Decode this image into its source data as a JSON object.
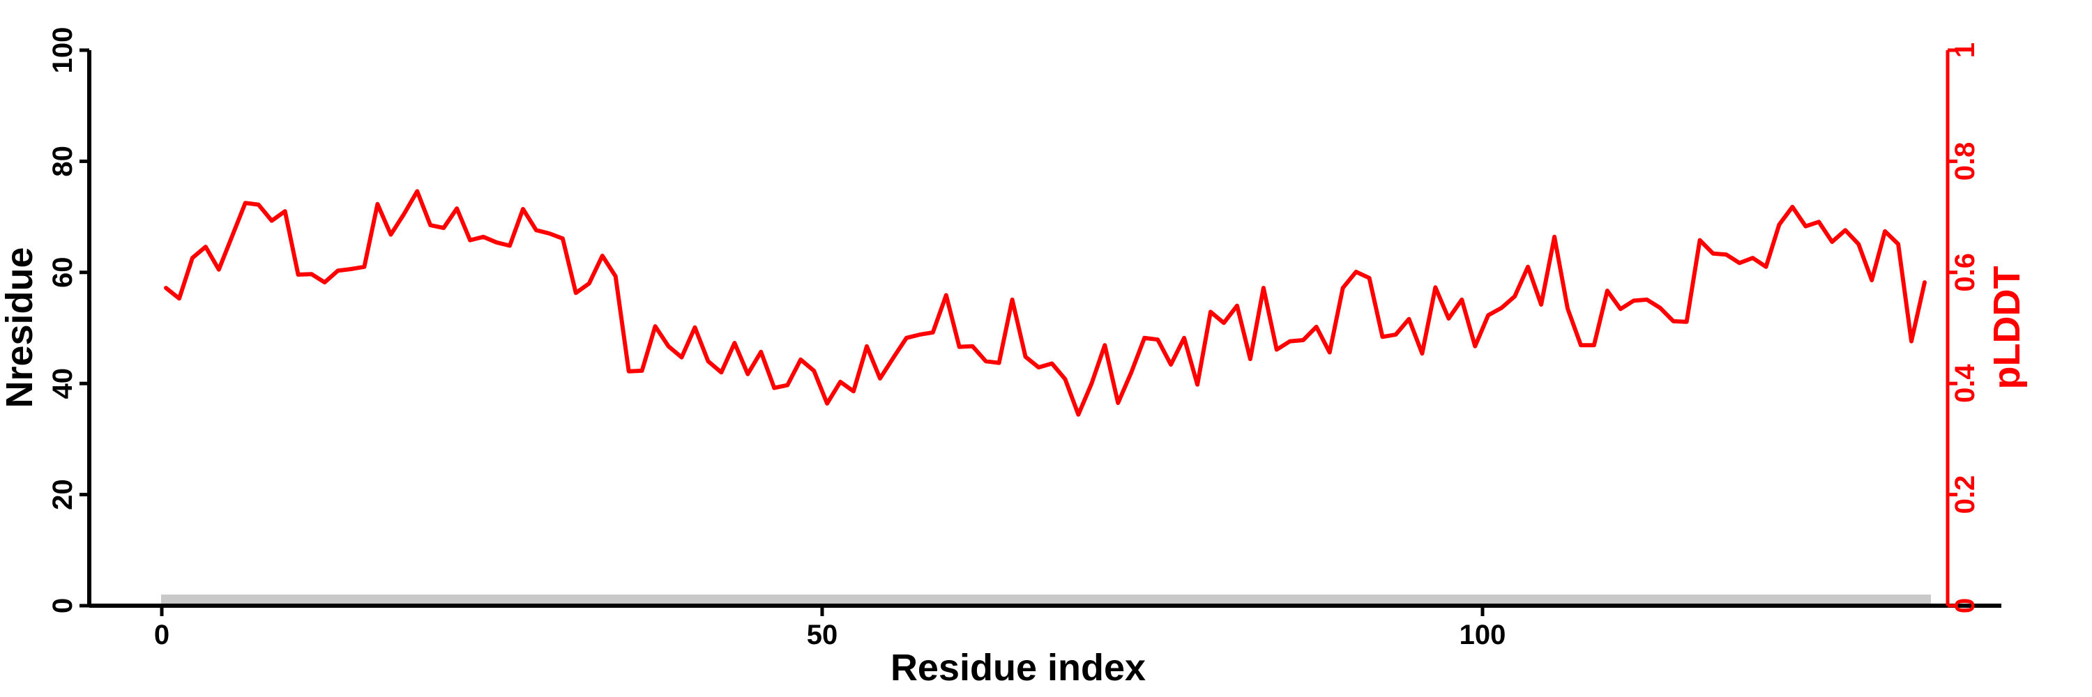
{
  "figure": {
    "background": "#ffffff",
    "axis_color": "#000000",
    "accent_red": "#ff0000",
    "bar_color": "#c9c9c9"
  },
  "chart_data": {
    "type": "line",
    "title": "",
    "xlabel": "Residue index",
    "ylabel_left": "Nresidue",
    "ylabel_right": "pLDDT",
    "x_tick_values": [
      0,
      50,
      100
    ],
    "x_tick_labels": [
      "0",
      "50",
      "100"
    ],
    "left_tick_values": [
      0,
      20,
      40,
      60,
      80,
      100
    ],
    "left_tick_labels": [
      "0",
      "20",
      "40",
      "60",
      "80",
      "100"
    ],
    "right_tick_values": [
      0,
      0.2,
      0.4,
      0.6,
      0.8,
      1
    ],
    "right_tick_labels": [
      "0",
      "0.2",
      "0.4",
      "0.6",
      "0.8",
      "1"
    ],
    "xlim": [
      -5.5,
      135.2
    ],
    "ylim_left": [
      0,
      100
    ],
    "ylim_right": [
      0,
      1
    ],
    "grid": false,
    "legend": "none",
    "series": [
      {
        "name": "pLDDT",
        "color": "#ff0000",
        "x_start": 1,
        "x_step": 1,
        "values": [
          0.572,
          0.553,
          0.626,
          0.646,
          0.605,
          0.665,
          0.725,
          0.722,
          0.693,
          0.71,
          0.596,
          0.597,
          0.582,
          0.603,
          0.606,
          0.61,
          0.723,
          0.668,
          0.705,
          0.746,
          0.685,
          0.68,
          0.715,
          0.658,
          0.664,
          0.654,
          0.648,
          0.714,
          0.676,
          0.67,
          0.661,
          0.563,
          0.58,
          0.63,
          0.593,
          0.422,
          0.423,
          0.503,
          0.467,
          0.447,
          0.501,
          0.44,
          0.42,
          0.473,
          0.417,
          0.457,
          0.392,
          0.397,
          0.443,
          0.423,
          0.364,
          0.403,
          0.386,
          0.467,
          0.409,
          0.446,
          0.482,
          0.488,
          0.492,
          0.559,
          0.466,
          0.467,
          0.44,
          0.437,
          0.551,
          0.448,
          0.429,
          0.436,
          0.408,
          0.344,
          0.4,
          0.469,
          0.365,
          0.42,
          0.482,
          0.479,
          0.434,
          0.482,
          0.398,
          0.529,
          0.509,
          0.54,
          0.444,
          0.572,
          0.461,
          0.476,
          0.478,
          0.502,
          0.456,
          0.572,
          0.601,
          0.59,
          0.484,
          0.488,
          0.516,
          0.454,
          0.573,
          0.517,
          0.551,
          0.467,
          0.523,
          0.536,
          0.557,
          0.61,
          0.542,
          0.664,
          0.535,
          0.469,
          0.469,
          0.567,
          0.534,
          0.549,
          0.551,
          0.536,
          0.512,
          0.511,
          0.658,
          0.634,
          0.632,
          0.617,
          0.626,
          0.61,
          0.686,
          0.718,
          0.683,
          0.691,
          0.655,
          0.676,
          0.651,
          0.586,
          0.674,
          0.651,
          0.476,
          0.582
        ]
      }
    ],
    "annotations": [
      {
        "type": "baseline-bar",
        "description": "gray horizontal bar along bottom of plot",
        "x_start": 0,
        "x_end": 134,
        "y_low_left_axis": 0.3,
        "y_high_left_axis": 2.0,
        "color": "#c9c9c9"
      }
    ]
  }
}
